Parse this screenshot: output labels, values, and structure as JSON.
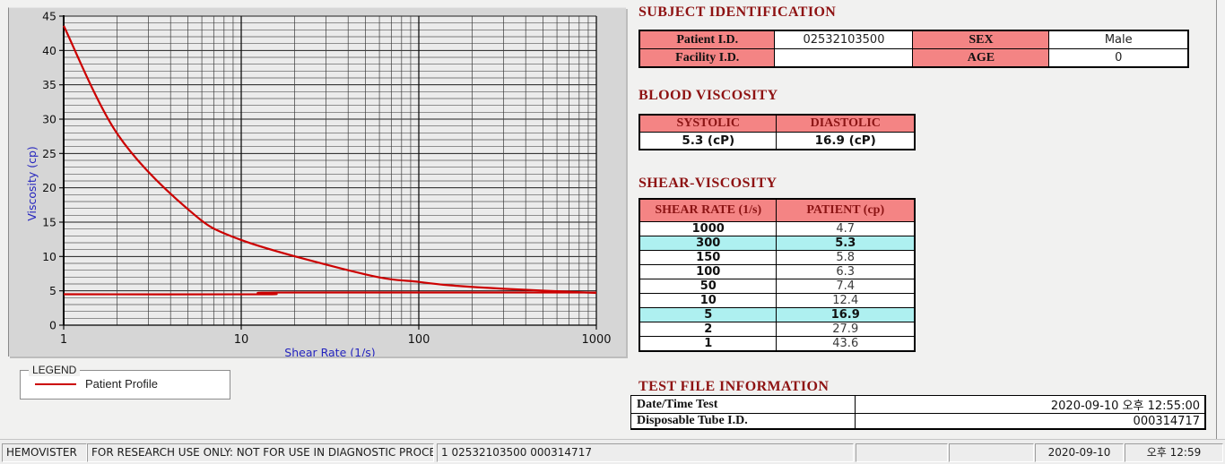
{
  "app_name": "HEMOVISTER",
  "colors": {
    "section_title": "#8E1212",
    "table_header_bg": "#F48484",
    "table_header_text": "#8B1414",
    "highlight_row_bg": "#AEF0F0",
    "curve_red": "#CC0000",
    "axis_label_blue": "#2424BE",
    "plot_bg": "#EBEBEB"
  },
  "chart": {
    "y_ticks": [
      0,
      5,
      10,
      15,
      20,
      25,
      30,
      35,
      40,
      45
    ],
    "x_ticks": [
      1,
      10,
      100,
      1000
    ]
  },
  "chart_data": {
    "type": "line",
    "title": "",
    "xlabel": "Shear Rate (1/s)",
    "ylabel": "Viscosity (cp)",
    "x_scale": "log",
    "xlim": [
      1,
      1000
    ],
    "ylim": [
      0,
      45
    ],
    "grid": "on",
    "legend_position": "below-left group box",
    "series": [
      {
        "name": "Patient Profile",
        "color": "#CC0000",
        "x": [
          1,
          2,
          5,
          10,
          50,
          100,
          150,
          300,
          1000
        ],
        "y": [
          43.6,
          27.9,
          16.9,
          12.4,
          7.4,
          6.3,
          5.8,
          5.3,
          4.7
        ]
      },
      {
        "name": "reference-line",
        "color": "#CC0000",
        "x": [
          1,
          14,
          16,
          1000
        ],
        "y": [
          4.5,
          4.5,
          4.75,
          4.75
        ]
      }
    ]
  },
  "legend": {
    "group_label": "LEGEND",
    "items": [
      {
        "label": "Patient Profile",
        "color": "#CC0000"
      }
    ]
  },
  "subject": {
    "title": "SUBJECT IDENTIFICATION",
    "rows": [
      [
        "Patient I.D.",
        "02532103500",
        "SEX",
        "Male"
      ],
      [
        "Facility I.D.",
        "",
        "AGE",
        "0"
      ]
    ]
  },
  "blood": {
    "title": "BLOOD VISCOSITY",
    "headers": [
      "SYSTOLIC",
      "DIASTOLIC"
    ],
    "values": [
      "5.3 (cP)",
      "16.9 (cP)"
    ]
  },
  "shear": {
    "title": "SHEAR-VISCOSITY",
    "headers": [
      "SHEAR RATE (1/s)",
      "PATIENT (cp)"
    ],
    "rows": [
      [
        "1000",
        "4.7"
      ],
      [
        "300",
        "5.3"
      ],
      [
        "150",
        "5.8"
      ],
      [
        "100",
        "6.3"
      ],
      [
        "50",
        "7.4"
      ],
      [
        "10",
        "12.4"
      ],
      [
        "5",
        "16.9"
      ],
      [
        "2",
        "27.9"
      ],
      [
        "1",
        "43.6"
      ]
    ],
    "highlighted_rates": [
      "300",
      "5"
    ]
  },
  "test_file": {
    "title": "TEST FILE INFORMATION",
    "rows": [
      {
        "label": "Date/Time Test",
        "value": "2020-09-10   오후 12:55:00"
      },
      {
        "label": "Disposable Tube I.D.",
        "value": "000314717"
      }
    ]
  },
  "status_bar": {
    "segments": [
      "HEMOVISTER",
      "FOR RESEARCH USE ONLY: NOT FOR USE IN DIAGNOSTIC PROCEDURES",
      "1  02532103500  000314717",
      "",
      "",
      "2020-09-10",
      "오후 12:59"
    ]
  }
}
